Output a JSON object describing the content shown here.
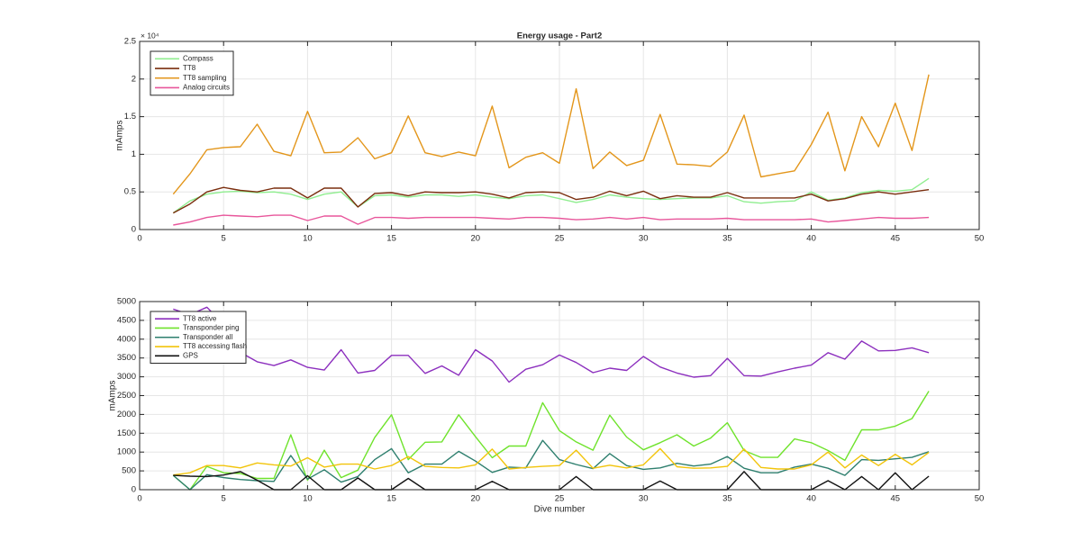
{
  "chart_data": [
    {
      "type": "line",
      "title": "Energy usage - Part2",
      "xlabel": "",
      "ylabel": "mAmps",
      "xlim": [
        0,
        50
      ],
      "ylim": [
        0,
        25000
      ],
      "xticks": [
        0,
        5,
        10,
        15,
        20,
        25,
        30,
        35,
        40,
        45,
        50
      ],
      "xtick_labels": [
        "0",
        "5",
        "10",
        "15",
        "20",
        "25",
        "30",
        "35",
        "40",
        "45",
        "50"
      ],
      "yticks": [
        0,
        5000,
        10000,
        15000,
        20000,
        25000
      ],
      "ytick_labels": [
        "0",
        "0.5",
        "1",
        "1.5",
        "2",
        "2.5"
      ],
      "y_exponent_label": "× 10⁴",
      "grid": true,
      "legend_position": "top-left",
      "x": [
        2,
        3,
        4,
        5,
        6,
        7,
        8,
        9,
        10,
        11,
        12,
        13,
        14,
        15,
        16,
        17,
        18,
        19,
        20,
        21,
        22,
        23,
        24,
        25,
        26,
        27,
        28,
        29,
        30,
        31,
        32,
        33,
        34,
        35,
        36,
        37,
        38,
        39,
        40,
        41,
        42,
        43,
        44,
        45,
        46,
        47
      ],
      "series": [
        {
          "name": "Compass",
          "color": "#90ee90",
          "values": [
            2200,
            3800,
            4700,
            5000,
            5100,
            4900,
            5000,
            4700,
            4000,
            4700,
            5000,
            3000,
            4500,
            4600,
            4300,
            4600,
            4600,
            4400,
            4600,
            4300,
            4100,
            4500,
            4600,
            4100,
            3600,
            4000,
            4600,
            4300,
            4100,
            4000,
            4100,
            4200,
            4200,
            4500,
            3700,
            3500,
            3700,
            3800,
            5000,
            3900,
            4200,
            4900,
            5200,
            5100,
            5300,
            6800
          ]
        },
        {
          "name": "TT8",
          "color": "#7a2e0e",
          "values": [
            2200,
            3400,
            5000,
            5600,
            5200,
            5000,
            5500,
            5500,
            4200,
            5500,
            5500,
            3000,
            4800,
            4900,
            4500,
            5000,
            4900,
            4900,
            5000,
            4700,
            4200,
            4900,
            5000,
            4900,
            4000,
            4300,
            5100,
            4500,
            5100,
            4100,
            4500,
            4300,
            4300,
            4900,
            4200,
            4200,
            4200,
            4200,
            4700,
            3800,
            4100,
            4700,
            5000,
            4700,
            5000,
            5300
          ]
        },
        {
          "name": "TT8 sampling",
          "color": "#e3961b",
          "values": [
            4700,
            7400,
            10600,
            10900,
            11000,
            14000,
            10400,
            9800,
            15700,
            10200,
            10300,
            12200,
            9400,
            10200,
            15100,
            10200,
            9700,
            10300,
            9800,
            16400,
            8200,
            9600,
            10200,
            8800,
            18700,
            8100,
            10300,
            8500,
            9200,
            15300,
            8700,
            8600,
            8400,
            10300,
            15200,
            7000,
            7400,
            7800,
            11300,
            15600,
            7800,
            15000,
            11000,
            16800,
            10500,
            20600
          ]
        },
        {
          "name": "Analog circuits",
          "color": "#e8569b",
          "values": [
            600,
            1000,
            1600,
            1900,
            1800,
            1700,
            1900,
            1900,
            1200,
            1800,
            1800,
            700,
            1600,
            1600,
            1500,
            1600,
            1600,
            1600,
            1600,
            1500,
            1400,
            1600,
            1600,
            1500,
            1300,
            1400,
            1600,
            1400,
            1600,
            1300,
            1400,
            1400,
            1400,
            1500,
            1300,
            1300,
            1300,
            1300,
            1400,
            1000,
            1200,
            1400,
            1600,
            1500,
            1500,
            1600
          ]
        }
      ]
    },
    {
      "type": "line",
      "title": "",
      "xlabel": "Dive number",
      "ylabel": "mAmps",
      "xlim": [
        0,
        50
      ],
      "ylim": [
        0,
        5000
      ],
      "xticks": [
        0,
        5,
        10,
        15,
        20,
        25,
        30,
        35,
        40,
        45,
        50
      ],
      "xtick_labels": [
        "0",
        "5",
        "10",
        "15",
        "20",
        "25",
        "30",
        "35",
        "40",
        "45",
        "50"
      ],
      "yticks": [
        0,
        500,
        1000,
        1500,
        2000,
        2500,
        3000,
        3500,
        4000,
        4500,
        5000
      ],
      "ytick_labels": [
        "0",
        "500",
        "1000",
        "1500",
        "2000",
        "2500",
        "3000",
        "3500",
        "4000",
        "4500",
        "5000"
      ],
      "grid": true,
      "legend_position": "top-left",
      "x": [
        2,
        3,
        4,
        5,
        6,
        7,
        8,
        9,
        10,
        11,
        12,
        13,
        14,
        15,
        16,
        17,
        18,
        19,
        20,
        21,
        22,
        23,
        24,
        25,
        26,
        27,
        28,
        29,
        30,
        31,
        32,
        33,
        34,
        35,
        36,
        37,
        38,
        39,
        40,
        41,
        42,
        43,
        44,
        45,
        46,
        47
      ],
      "series": [
        {
          "name": "TT8 active",
          "color": "#8c2fbe",
          "values": [
            4800,
            4650,
            4850,
            4400,
            3650,
            3400,
            3300,
            3450,
            3250,
            3180,
            3720,
            3100,
            3170,
            3570,
            3570,
            3090,
            3290,
            3040,
            3720,
            3420,
            2860,
            3200,
            3320,
            3580,
            3380,
            3110,
            3230,
            3170,
            3540,
            3260,
            3100,
            2990,
            3030,
            3490,
            3030,
            3020,
            3130,
            3230,
            3310,
            3640,
            3470,
            3950,
            3690,
            3700,
            3770,
            3640
          ]
        },
        {
          "name": "Transponder ping",
          "color": "#6fe32c",
          "values": [
            380,
            0,
            620,
            450,
            430,
            300,
            300,
            1460,
            250,
            1050,
            320,
            520,
            1390,
            1990,
            800,
            1260,
            1270,
            1990,
            1410,
            850,
            1160,
            1160,
            2310,
            1570,
            1270,
            1050,
            1980,
            1400,
            1060,
            1250,
            1460,
            1160,
            1370,
            1780,
            1040,
            860,
            860,
            1350,
            1250,
            1040,
            780,
            1590,
            1590,
            1690,
            1890,
            2620
          ]
        },
        {
          "name": "Transponder all",
          "color": "#2e7f6e",
          "values": [
            380,
            0,
            400,
            320,
            270,
            240,
            220,
            910,
            280,
            530,
            200,
            350,
            800,
            1090,
            450,
            680,
            680,
            1020,
            760,
            460,
            600,
            580,
            1310,
            800,
            670,
            560,
            960,
            640,
            540,
            580,
            700,
            630,
            680,
            880,
            570,
            450,
            450,
            600,
            680,
            570,
            380,
            800,
            780,
            820,
            860,
            1010
          ]
        },
        {
          "name": "TT8 accessing flash",
          "color": "#f2c40a",
          "values": [
            390,
            450,
            640,
            640,
            580,
            710,
            660,
            630,
            850,
            600,
            680,
            680,
            550,
            640,
            880,
            620,
            590,
            580,
            660,
            1080,
            550,
            590,
            620,
            640,
            1050,
            570,
            650,
            580,
            660,
            1090,
            610,
            570,
            580,
            620,
            1080,
            590,
            550,
            550,
            660,
            1000,
            580,
            920,
            640,
            940,
            660,
            990
          ]
        },
        {
          "name": "GPS",
          "color": "#111111",
          "values": [
            380,
            360,
            350,
            390,
            480,
            250,
            0,
            0,
            370,
            0,
            0,
            310,
            0,
            0,
            300,
            0,
            0,
            0,
            0,
            220,
            0,
            0,
            0,
            0,
            350,
            0,
            0,
            0,
            0,
            230,
            0,
            0,
            0,
            0,
            480,
            0,
            0,
            0,
            0,
            240,
            0,
            350,
            0,
            450,
            0,
            360
          ]
        }
      ]
    }
  ]
}
